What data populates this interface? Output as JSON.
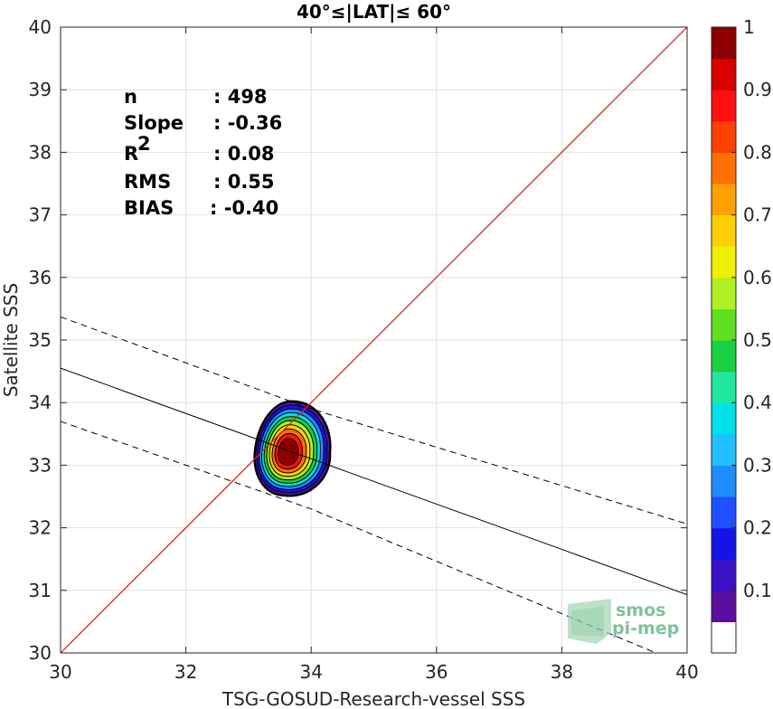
{
  "chart_data": {
    "type": "scatter",
    "title": "40°≤|LAT|≤ 60°",
    "xlabel": "TSG-GOSUD-Research-vessel SSS",
    "ylabel": "Satellite SSS",
    "xlim": [
      30,
      40
    ],
    "ylim": [
      30,
      40
    ],
    "xticks": [
      "30",
      "32",
      "34",
      "36",
      "38",
      "40"
    ],
    "yticks": [
      "30",
      "31",
      "32",
      "33",
      "34",
      "35",
      "36",
      "37",
      "38",
      "39",
      "40"
    ],
    "grid": true,
    "stats": [
      {
        "label": "n",
        "value": ": 498"
      },
      {
        "label": "Slope",
        "value": ": -0.36"
      },
      {
        "label": "R",
        "sup": "2",
        "value": ": 0.08"
      },
      {
        "label": "RMS",
        "value": ": 0.55"
      },
      {
        "label": "BIAS",
        "value": ": -0.40"
      }
    ],
    "identity_line": {
      "color": "#e02020",
      "x": [
        30,
        40
      ],
      "y": [
        30,
        40
      ]
    },
    "fit_line": {
      "x": [
        30,
        40
      ],
      "y": [
        34.55,
        30.93
      ]
    },
    "upper_bound": {
      "x": [
        30,
        34,
        40
      ],
      "y": [
        35.37,
        33.9,
        32.06
      ]
    },
    "lower_bound": {
      "x": [
        30,
        34,
        39.5
      ],
      "y": [
        33.7,
        32.3,
        30
      ]
    },
    "density_contours": {
      "center": [
        33.62,
        33.2
      ],
      "levels": [
        0.05,
        0.15,
        0.25,
        0.35,
        0.45,
        0.55,
        0.65,
        0.75,
        0.85,
        0.95
      ],
      "outer_extent": {
        "x": [
          33.1,
          34.3
        ],
        "y": [
          32.52,
          34.02
        ]
      }
    },
    "colorbar": {
      "ticks": [
        "0.1",
        "0.2",
        "0.3",
        "0.4",
        "0.5",
        "0.6",
        "0.7",
        "0.8",
        "0.9",
        "1"
      ],
      "colors": [
        "#ffffff",
        "#5b0fa0",
        "#3a10c8",
        "#1414e8",
        "#1e50ff",
        "#1e8cff",
        "#20c0ff",
        "#00e0e8",
        "#20e8a0",
        "#18d040",
        "#60e020",
        "#b0f020",
        "#f0f000",
        "#ffd000",
        "#ffa000",
        "#ff7000",
        "#ff4000",
        "#ff1010",
        "#d80000",
        "#8c0000"
      ]
    },
    "logo": {
      "line1": "smos",
      "line2": "pi-mep"
    }
  }
}
